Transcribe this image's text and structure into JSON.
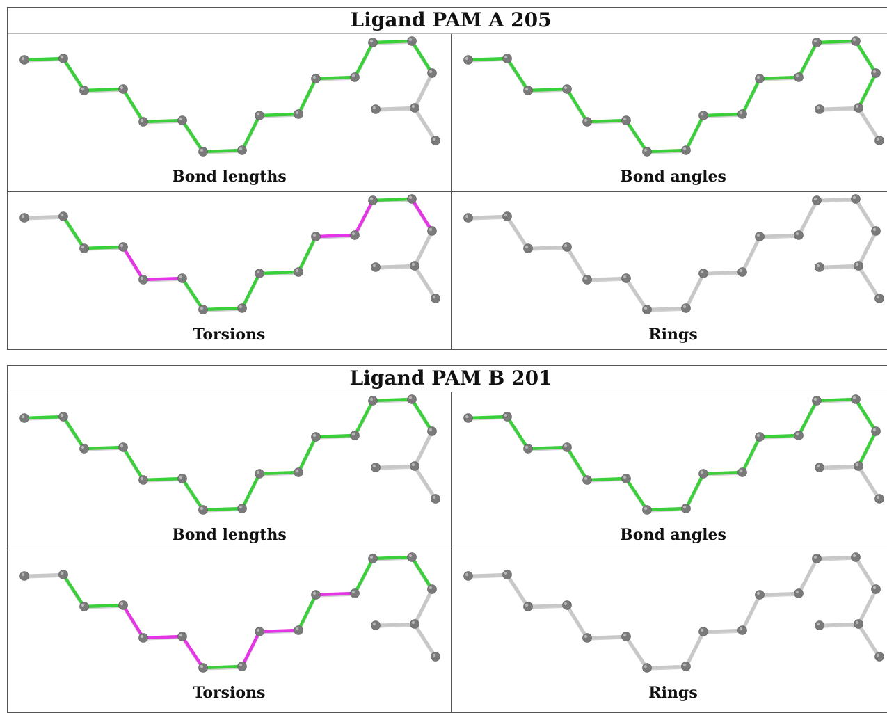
{
  "colors": {
    "green": "#3ccf3c",
    "magenta": "#e436e4",
    "grey_bond": "#c8c8c8",
    "atom": "#7a7a7a"
  },
  "blocks": [
    {
      "title": "Ligand PAM A 205",
      "panels": [
        {
          "label": "Bond lengths",
          "bond_colors": [
            "green",
            "green",
            "green",
            "green",
            "green",
            "green",
            "green",
            "green",
            "green",
            "green",
            "green",
            "green",
            "green",
            "green",
            "grey",
            "grey",
            "grey",
            "grey"
          ]
        },
        {
          "label": "Bond angles",
          "bond_colors": [
            "green",
            "green",
            "green",
            "green",
            "green",
            "green",
            "green",
            "green",
            "green",
            "green",
            "green",
            "green",
            "green",
            "green",
            "green",
            "grey",
            "grey",
            "grey"
          ]
        },
        {
          "label": "Torsions",
          "bond_colors": [
            "grey",
            "green",
            "green",
            "magenta",
            "magenta",
            "green",
            "green",
            "green",
            "green",
            "green",
            "magenta",
            "magenta",
            "green",
            "magenta",
            "grey",
            "grey",
            "grey",
            "grey"
          ]
        },
        {
          "label": "Rings",
          "bond_colors": [
            "grey",
            "grey",
            "grey",
            "grey",
            "grey",
            "grey",
            "grey",
            "grey",
            "grey",
            "grey",
            "grey",
            "grey",
            "grey",
            "grey",
            "grey",
            "grey",
            "grey",
            "grey"
          ]
        }
      ]
    },
    {
      "title": "Ligand PAM B 201",
      "panels": [
        {
          "label": "Bond lengths",
          "bond_colors": [
            "green",
            "green",
            "green",
            "green",
            "green",
            "green",
            "green",
            "green",
            "green",
            "green",
            "green",
            "green",
            "green",
            "green",
            "grey",
            "grey",
            "grey",
            "grey"
          ]
        },
        {
          "label": "Bond angles",
          "bond_colors": [
            "green",
            "green",
            "green",
            "green",
            "green",
            "green",
            "green",
            "green",
            "green",
            "green",
            "green",
            "green",
            "green",
            "green",
            "green",
            "grey",
            "grey",
            "grey"
          ]
        },
        {
          "label": "Torsions",
          "bond_colors": [
            "grey",
            "green",
            "green",
            "magenta",
            "magenta",
            "magenta",
            "green",
            "magenta",
            "magenta",
            "green",
            "magenta",
            "green",
            "green",
            "green",
            "grey",
            "grey",
            "grey",
            "grey"
          ]
        },
        {
          "label": "Rings",
          "bond_colors": [
            "grey",
            "grey",
            "grey",
            "grey",
            "grey",
            "grey",
            "grey",
            "grey",
            "grey",
            "grey",
            "grey",
            "grey",
            "grey",
            "grey",
            "grey",
            "grey",
            "grey",
            "grey"
          ]
        }
      ]
    }
  ]
}
